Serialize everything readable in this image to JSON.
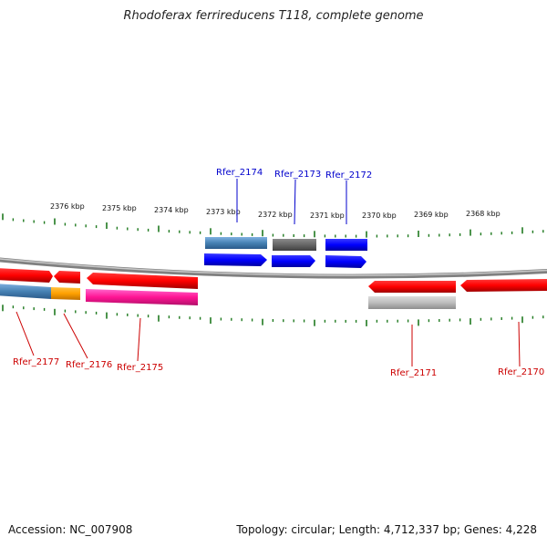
{
  "title": "Rhodoferax ferrireducens T118, complete genome",
  "footer": {
    "accession": "Accession: NC_007908",
    "stats": "Topology: circular; Length: 4,712,337 bp; Genes: 4,228"
  },
  "colors": {
    "ticks": "#1f7a1f",
    "backbone": "#808080",
    "label_top": "#0000cc",
    "label_bottom": "#cc0000"
  },
  "scale_labels": [
    "2376 kbp",
    "2375 kbp",
    "2374 kbp",
    "2373 kbp",
    "2372 kbp",
    "2371 kbp",
    "2370 kbp",
    "2369 kbp",
    "2368 kbp"
  ],
  "gene_labels": {
    "top": [
      "Rfer_2174",
      "Rfer_2173",
      "Rfer_2172"
    ],
    "bottom": [
      "Rfer_2177",
      "Rfer_2176",
      "Rfer_2175",
      "Rfer_2171",
      "Rfer_2170"
    ]
  }
}
